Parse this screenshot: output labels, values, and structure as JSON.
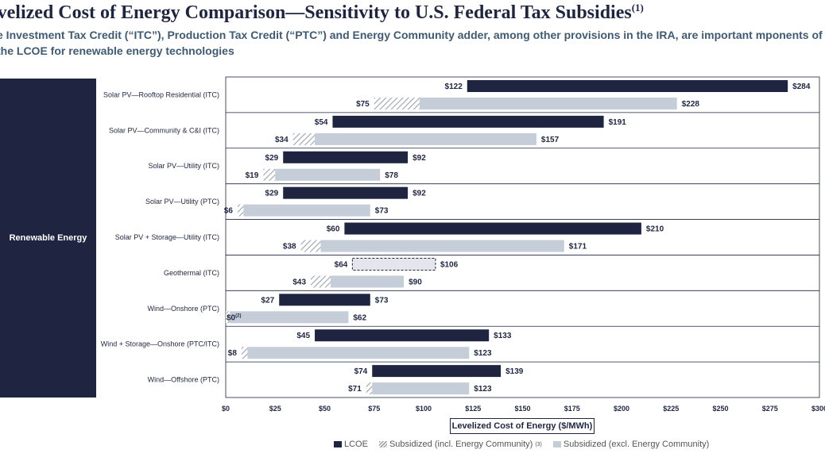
{
  "header": {
    "title": "evelized Cost of Energy Comparison—Sensitivity to U.S. Federal Tax Subsidies",
    "title_footnote": "(1)",
    "subtitle": "e Investment Tax Credit (“ITC”), Production Tax Credit (“PTC”) and Energy Community adder, among other provisions in the IRA, are important mponents of the LCOE for renewable energy technologies"
  },
  "sidebar": {
    "label": "Renewable Energy"
  },
  "colors": {
    "lcoe": "#1f2540",
    "excl": "#c5ced8",
    "hatch": "#9aa3ad",
    "text": "#1e2540"
  },
  "chart_data": {
    "type": "bar",
    "orientation": "horizontal-range",
    "xlabel": "Levelized Cost of Energy ($/MWh)",
    "xlim": [
      0,
      300
    ],
    "xticks": [
      "$0",
      "$25",
      "$50",
      "$75",
      "$100",
      "$125",
      "$150",
      "$175",
      "$200",
      "$225",
      "$250",
      "$275",
      "$300"
    ],
    "legend": {
      "lcoe": "LCOE",
      "incl": "Subsidized (incl. Energy Community)",
      "incl_footnote": "(3)",
      "excl": "Subsidized (excl. Energy Community)"
    },
    "rows": [
      {
        "category": "Solar PV—Rooftop Residential (ITC)",
        "lcoe": [
          122,
          284
        ],
        "lcoe_labels": [
          "$122",
          "$284"
        ],
        "sub_low": 75,
        "sub_excl_low": 98,
        "sub_high": 228,
        "sub_labels": [
          "$75",
          "$228"
        ]
      },
      {
        "category": "Solar PV—Community & C&I (ITC)",
        "lcoe": [
          54,
          191
        ],
        "lcoe_labels": [
          "$54",
          "$191"
        ],
        "sub_low": 34,
        "sub_excl_low": 45,
        "sub_high": 157,
        "sub_labels": [
          "$34",
          "$157"
        ]
      },
      {
        "category": "Solar PV—Utility (ITC)",
        "lcoe": [
          29,
          92
        ],
        "lcoe_labels": [
          "$29",
          "$92"
        ],
        "sub_low": 19,
        "sub_excl_low": 25,
        "sub_high": 78,
        "sub_labels": [
          "$19",
          "$78"
        ]
      },
      {
        "category": "Solar PV—Utility (PTC)",
        "lcoe": [
          29,
          92
        ],
        "lcoe_labels": [
          "$29",
          "$92"
        ],
        "sub_low": 6,
        "sub_excl_low": 9,
        "sub_high": 73,
        "sub_labels": [
          "$6",
          "$73"
        ]
      },
      {
        "category": "Solar PV + Storage—Utility (ITC)",
        "lcoe": [
          60,
          210
        ],
        "lcoe_labels": [
          "$60",
          "$210"
        ],
        "sub_low": 38,
        "sub_excl_low": 48,
        "sub_high": 171,
        "sub_labels": [
          "$38",
          "$171"
        ]
      },
      {
        "category": "Geothermal (ITC)",
        "lcoe": [
          64,
          106
        ],
        "lcoe_labels": [
          "$64",
          "$106"
        ],
        "lcoe_dashed": true,
        "sub_low": 43,
        "sub_excl_low": 53,
        "sub_high": 90,
        "sub_labels": [
          "$43",
          "$90"
        ]
      },
      {
        "category": "Wind—Onshore (PTC)",
        "lcoe": [
          27,
          73
        ],
        "lcoe_labels": [
          "$27",
          "$73"
        ],
        "sub_low": 0,
        "sub_excl_low": 2,
        "sub_high": 62,
        "sub_labels": [
          "$0",
          "$62"
        ],
        "sub_low_footnote": "(2)"
      },
      {
        "category": "Wind + Storage—Onshore (PTC/ITC)",
        "lcoe": [
          45,
          133
        ],
        "lcoe_labels": [
          "$45",
          "$133"
        ],
        "sub_low": 8,
        "sub_excl_low": 11,
        "sub_high": 123,
        "sub_labels": [
          "$8",
          "$123"
        ]
      },
      {
        "category": "Wind—Offshore (PTC)",
        "lcoe": [
          74,
          139
        ],
        "lcoe_labels": [
          "$74",
          "$139"
        ],
        "sub_low": 71,
        "sub_excl_low": 74,
        "sub_high": 123,
        "sub_labels": [
          "$71",
          "$123"
        ]
      }
    ]
  }
}
